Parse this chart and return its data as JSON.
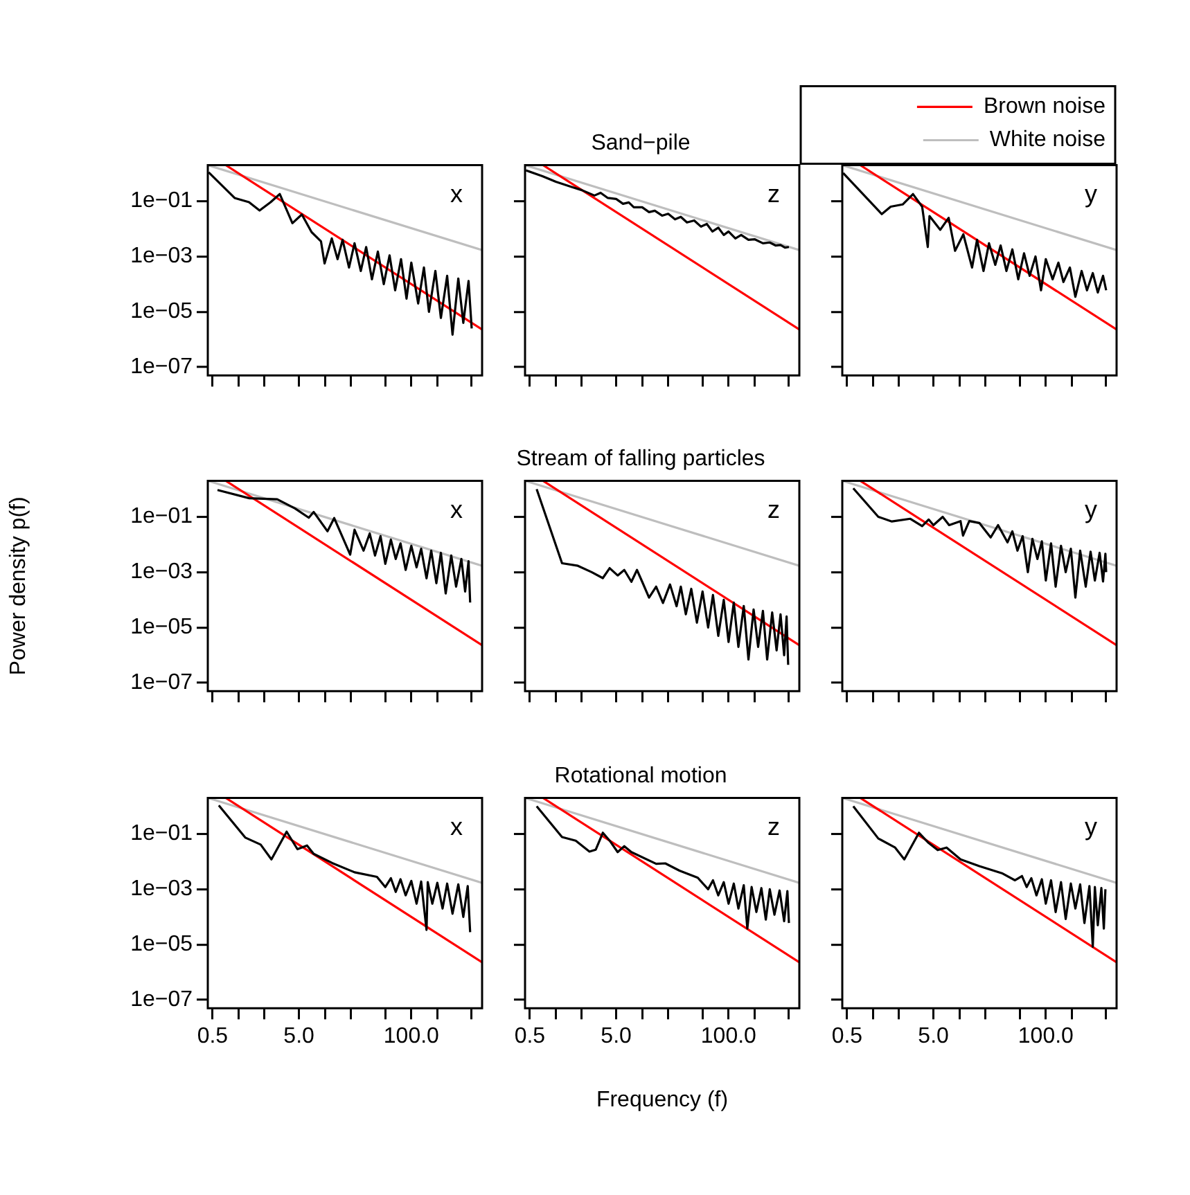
{
  "chart_data": [
    {
      "type": "line",
      "annotations": [
        "x"
      ],
      "log": "xy",
      "marker": "none",
      "tick_labels": "y",
      "xlim": [
        0.44,
        660
      ],
      "ylim": [
        5e-08,
        2
      ],
      "xticks": [
        {
          "value": 0.5,
          "label": null
        },
        {
          "value": 1,
          "label": null
        },
        {
          "value": 2,
          "label": null
        },
        {
          "value": 5,
          "label": null
        },
        {
          "value": 10,
          "label": null
        },
        {
          "value": 20,
          "label": null
        },
        {
          "value": 50,
          "label": null
        },
        {
          "value": 100,
          "label": null
        },
        {
          "value": 200,
          "label": null
        },
        {
          "value": 500,
          "label": null
        }
      ],
      "yticks": [
        {
          "value": 1e-07,
          "label": "1e−07"
        },
        {
          "value": 1e-05,
          "label": "1e−05"
        },
        {
          "value": 0.001,
          "label": "1e−03"
        },
        {
          "value": 0.1,
          "label": "1e−01"
        }
      ],
      "series": [
        {
          "color": "#000000",
          "x": [
            0.45,
            0.9,
            1.32,
            1.75,
            2.35,
            3,
            4.2,
            5.4,
            7,
            9,
            9.9,
            12,
            14,
            16,
            19,
            22,
            26,
            30,
            35,
            41,
            48,
            56,
            65,
            76,
            88,
            100,
            120,
            140,
            160,
            190,
            220,
            260,
            300,
            350,
            400,
            460,
            500
          ],
          "values": [
            1.1,
            0.13,
            0.092,
            0.046,
            0.092,
            0.18,
            0.016,
            0.033,
            0.0076,
            0.0035,
            0.00056,
            0.0045,
            0.0008,
            0.004,
            0.0004,
            0.003,
            0.0003,
            0.0022,
            0.00015,
            0.0015,
            0.0001,
            0.0011,
            6e-05,
            0.0008,
            3e-05,
            0.0006,
            2e-05,
            0.0004,
            1e-05,
            0.0003,
            6e-06,
            0.0002,
            1.5e-06,
            0.00016,
            4e-06,
            0.00013,
            2.5e-06
          ]
        },
        {
          "color": "#ff0000",
          "x": [
            0.71,
            660
          ],
          "values": [
            2,
            2.3e-06
          ]
        },
        {
          "color": "#bebebe",
          "x": [
            0.44,
            660
          ],
          "values": [
            2,
            0.0017
          ]
        }
      ]
    },
    {
      "type": "line",
      "title": "Sand−pile",
      "annotations": [
        "z"
      ],
      "log": "xy",
      "marker": "none",
      "tick_labels": false,
      "xlim": [
        0.44,
        660
      ],
      "ylim": [
        5e-08,
        2
      ],
      "xticks": [
        {
          "value": 0.5,
          "label": null
        },
        {
          "value": 1,
          "label": null
        },
        {
          "value": 2,
          "label": null
        },
        {
          "value": 5,
          "label": null
        },
        {
          "value": 10,
          "label": null
        },
        {
          "value": 20,
          "label": null
        },
        {
          "value": 50,
          "label": null
        },
        {
          "value": 100,
          "label": null
        },
        {
          "value": 200,
          "label": null
        },
        {
          "value": 500,
          "label": null
        }
      ],
      "yticks": [
        {
          "value": 1e-07,
          "label": null
        },
        {
          "value": 1e-05,
          "label": null
        },
        {
          "value": 0.001,
          "label": null
        },
        {
          "value": 0.1,
          "label": null
        }
      ],
      "series": [
        {
          "color": "#000000",
          "x": [
            0.45,
            0.7,
            1,
            1.5,
            2,
            2.8,
            3.3,
            4,
            5,
            6,
            7,
            8,
            10,
            12,
            14,
            17,
            20,
            24,
            28,
            33,
            40,
            48,
            56,
            65,
            76,
            88,
            100,
            120,
            140,
            170,
            200,
            250,
            300,
            350,
            400,
            450,
            500
          ],
          "values": [
            1.3,
            0.8,
            0.5,
            0.33,
            0.25,
            0.16,
            0.2,
            0.13,
            0.12,
            0.08,
            0.09,
            0.06,
            0.06,
            0.04,
            0.045,
            0.03,
            0.035,
            0.022,
            0.027,
            0.017,
            0.02,
            0.012,
            0.015,
            0.008,
            0.011,
            0.006,
            0.008,
            0.0045,
            0.006,
            0.004,
            0.0042,
            0.003,
            0.0032,
            0.0025,
            0.0026,
            0.0021,
            0.0022
          ]
        },
        {
          "color": "#ff0000",
          "x": [
            0.71,
            660
          ],
          "values": [
            2,
            2.3e-06
          ]
        },
        {
          "color": "#bebebe",
          "x": [
            0.44,
            660
          ],
          "values": [
            2,
            0.0017
          ]
        }
      ]
    },
    {
      "type": "line",
      "annotations": [
        "y"
      ],
      "log": "xy",
      "marker": "none",
      "tick_labels": false,
      "legend": "top right",
      "xlim": [
        0.44,
        660
      ],
      "ylim": [
        5e-08,
        2
      ],
      "xticks": [
        {
          "value": 0.5,
          "label": null
        },
        {
          "value": 1,
          "label": null
        },
        {
          "value": 2,
          "label": null
        },
        {
          "value": 5,
          "label": null
        },
        {
          "value": 10,
          "label": null
        },
        {
          "value": 20,
          "label": null
        },
        {
          "value": 50,
          "label": null
        },
        {
          "value": 100,
          "label": null
        },
        {
          "value": 200,
          "label": null
        },
        {
          "value": 500,
          "label": null
        }
      ],
      "yticks": [
        {
          "value": 1e-07,
          "label": null
        },
        {
          "value": 1e-05,
          "label": null
        },
        {
          "value": 0.001,
          "label": null
        },
        {
          "value": 0.1,
          "label": null
        }
      ],
      "series": [
        {
          "color": "#000000",
          "x": [
            0.45,
            1.26,
            1.6,
            2.2,
            2.9,
            3.7,
            4.3,
            4.5,
            6,
            7.5,
            8.9,
            11.1,
            14,
            16,
            19,
            22,
            26,
            30,
            35,
            41,
            48,
            56,
            65,
            76,
            88,
            100,
            120,
            140,
            160,
            190,
            220,
            260,
            300,
            350,
            400,
            460,
            500
          ],
          "values": [
            1.04,
            0.034,
            0.063,
            0.076,
            0.18,
            0.063,
            0.0022,
            0.029,
            0.0092,
            0.025,
            0.0016,
            0.0063,
            0.0004,
            0.004,
            0.0003,
            0.003,
            0.0005,
            0.0025,
            0.0003,
            0.0018,
            0.00015,
            0.0013,
            0.0002,
            0.001,
            6e-05,
            0.0008,
            0.00015,
            0.0006,
            0.00012,
            0.0004,
            3.5e-05,
            0.0003,
            6e-05,
            0.00025,
            5e-05,
            0.0002,
            6e-05
          ]
        },
        {
          "name": "Brown noise",
          "color": "#ff0000",
          "x": [
            0.71,
            660
          ],
          "values": [
            2,
            2.3e-06
          ]
        },
        {
          "name": "White noise",
          "color": "#bebebe",
          "x": [
            0.44,
            660
          ],
          "values": [
            2,
            0.0017
          ]
        }
      ]
    },
    {
      "type": "line",
      "ylabel": "Power density p(f)",
      "annotations": [
        "x"
      ],
      "log": "xy",
      "marker": "none",
      "tick_labels": "y",
      "xlim": [
        0.44,
        660
      ],
      "ylim": [
        5e-08,
        2
      ],
      "xticks": [
        {
          "value": 0.5,
          "label": null
        },
        {
          "value": 1,
          "label": null
        },
        {
          "value": 2,
          "label": null
        },
        {
          "value": 5,
          "label": null
        },
        {
          "value": 10,
          "label": null
        },
        {
          "value": 20,
          "label": null
        },
        {
          "value": 50,
          "label": null
        },
        {
          "value": 100,
          "label": null
        },
        {
          "value": 200,
          "label": null
        },
        {
          "value": 500,
          "label": null
        }
      ],
      "yticks": [
        {
          "value": 1e-07,
          "label": "1e−07"
        },
        {
          "value": 1e-05,
          "label": "1e−05"
        },
        {
          "value": 0.001,
          "label": "1e−03"
        },
        {
          "value": 0.1,
          "label": "1e−01"
        }
      ],
      "series": [
        {
          "color": "#000000",
          "x": [
            0.57,
            1.33,
            2.8,
            4.5,
            6.5,
            7.4,
            10.7,
            12.8,
            19.6,
            22,
            28,
            33,
            38,
            44,
            50,
            58,
            66,
            75,
            86,
            100,
            115,
            130,
            150,
            170,
            195,
            220,
            250,
            290,
            330,
            380,
            420,
            460,
            480
          ],
          "values": [
            0.93,
            0.47,
            0.43,
            0.2,
            0.093,
            0.15,
            0.03,
            0.09,
            0.0043,
            0.034,
            0.006,
            0.025,
            0.004,
            0.02,
            0.002,
            0.015,
            0.003,
            0.011,
            0.0012,
            0.009,
            0.0015,
            0.007,
            0.0006,
            0.006,
            0.0004,
            0.005,
            0.00017,
            0.004,
            0.0003,
            0.003,
            0.0002,
            0.0025,
            8e-05
          ]
        },
        {
          "color": "#ff0000",
          "x": [
            0.71,
            660
          ],
          "values": [
            2,
            2.3e-06
          ]
        },
        {
          "color": "#bebebe",
          "x": [
            0.44,
            660
          ],
          "values": [
            2,
            0.0017
          ]
        }
      ]
    },
    {
      "type": "line",
      "title": "Stream of falling particles",
      "annotations": [
        "z"
      ],
      "log": "xy",
      "marker": "none",
      "tick_labels": false,
      "xlim": [
        0.44,
        660
      ],
      "ylim": [
        5e-08,
        2
      ],
      "xticks": [
        {
          "value": 0.5,
          "label": null
        },
        {
          "value": 1,
          "label": null
        },
        {
          "value": 2,
          "label": null
        },
        {
          "value": 5,
          "label": null
        },
        {
          "value": 10,
          "label": null
        },
        {
          "value": 20,
          "label": null
        },
        {
          "value": 50,
          "label": null
        },
        {
          "value": 100,
          "label": null
        },
        {
          "value": 200,
          "label": null
        },
        {
          "value": 500,
          "label": null
        }
      ],
      "yticks": [
        {
          "value": 1e-07,
          "label": null
        },
        {
          "value": 1e-05,
          "label": null
        },
        {
          "value": 0.001,
          "label": null
        },
        {
          "value": 0.1,
          "label": null
        }
      ],
      "series": [
        {
          "color": "#000000",
          "x": [
            0.6,
            1.18,
            1.8,
            2.6,
            3.5,
            4.2,
            5.2,
            6.2,
            7.5,
            8.7,
            10,
            12,
            14.5,
            17.4,
            21,
            25,
            28,
            32,
            37,
            43,
            50,
            58,
            66,
            76,
            88,
            100,
            115,
            130,
            150,
            170,
            195,
            220,
            250,
            280,
            320,
            360,
            400,
            440,
            470,
            490
          ],
          "values": [
            1.0,
            0.0021,
            0.0017,
            0.001,
            0.00061,
            0.0014,
            0.00076,
            0.0012,
            0.00045,
            0.0012,
            0.00045,
            0.00012,
            0.0003,
            7.7e-05,
            0.00036,
            5.9e-05,
            0.0003,
            3e-05,
            0.00025,
            1.5e-05,
            0.0002,
            1e-05,
            0.00015,
            5e-06,
            0.0001,
            3e-06,
            8e-05,
            2e-06,
            6e-05,
            7e-07,
            4.5e-05,
            2e-06,
            4e-05,
            7e-07,
            3.5e-05,
            1.5e-06,
            3e-05,
            1e-06,
            2.5e-05,
            4.5e-07
          ]
        },
        {
          "color": "#ff0000",
          "x": [
            0.71,
            660
          ],
          "values": [
            2,
            2.3e-06
          ]
        },
        {
          "color": "#bebebe",
          "x": [
            0.44,
            660
          ],
          "values": [
            2,
            0.0017
          ]
        }
      ]
    },
    {
      "type": "line",
      "annotations": [
        "y"
      ],
      "log": "xy",
      "marker": "none",
      "tick_labels": false,
      "xlim": [
        0.44,
        660
      ],
      "ylim": [
        5e-08,
        2
      ],
      "xticks": [
        {
          "value": 0.5,
          "label": null
        },
        {
          "value": 1,
          "label": null
        },
        {
          "value": 2,
          "label": null
        },
        {
          "value": 5,
          "label": null
        },
        {
          "value": 10,
          "label": null
        },
        {
          "value": 20,
          "label": null
        },
        {
          "value": 50,
          "label": null
        },
        {
          "value": 100,
          "label": null
        },
        {
          "value": 200,
          "label": null
        },
        {
          "value": 500,
          "label": null
        }
      ],
      "yticks": [
        {
          "value": 1e-07,
          "label": null
        },
        {
          "value": 1e-05,
          "label": null
        },
        {
          "value": 0.001,
          "label": null
        },
        {
          "value": 0.1,
          "label": null
        }
      ],
      "series": [
        {
          "color": "#000000",
          "x": [
            0.59,
            1.15,
            1.65,
            2.7,
            3.7,
            4.4,
            5,
            6.4,
            7.6,
            10.3,
            11,
            13,
            17,
            23,
            28,
            36,
            41,
            47,
            54,
            62,
            70,
            80,
            90,
            100,
            115,
            130,
            150,
            170,
            195,
            220,
            250,
            290,
            330,
            370,
            420,
            460,
            490,
            500
          ],
          "values": [
            1.07,
            0.1,
            0.068,
            0.085,
            0.046,
            0.08,
            0.05,
            0.1,
            0.05,
            0.07,
            0.021,
            0.07,
            0.06,
            0.018,
            0.05,
            0.012,
            0.03,
            0.006,
            0.02,
            0.001,
            0.016,
            0.003,
            0.013,
            0.0005,
            0.011,
            0.0003,
            0.009,
            0.001,
            0.007,
            0.00012,
            0.006,
            0.0003,
            0.0055,
            0.0005,
            0.005,
            0.00046,
            0.0046,
            0.001
          ]
        },
        {
          "color": "#ff0000",
          "x": [
            0.71,
            660
          ],
          "values": [
            2,
            2.3e-06
          ]
        },
        {
          "color": "#bebebe",
          "x": [
            0.44,
            660
          ],
          "values": [
            2,
            0.0017
          ]
        }
      ]
    },
    {
      "type": "line",
      "annotations": [
        "x"
      ],
      "log": "xy",
      "marker": "none",
      "xlim": [
        0.44,
        660
      ],
      "ylim": [
        5e-08,
        2
      ],
      "xticks": [
        {
          "value": 0.5,
          "label": "0.5"
        },
        {
          "value": 1,
          "label": null
        },
        {
          "value": 2,
          "label": null
        },
        {
          "value": 5,
          "label": "5.0"
        },
        {
          "value": 10,
          "label": null
        },
        {
          "value": 20,
          "label": null
        },
        {
          "value": 50,
          "label": null
        },
        {
          "value": 100,
          "label": "100.0"
        },
        {
          "value": 200,
          "label": null
        },
        {
          "value": 500,
          "label": null
        }
      ],
      "yticks": [
        {
          "value": 1e-07,
          "label": "1e−07"
        },
        {
          "value": 1e-05,
          "label": "1e−05"
        },
        {
          "value": 0.001,
          "label": "1e−03"
        },
        {
          "value": 0.1,
          "label": "1e−01"
        }
      ],
      "series": [
        {
          "color": "#000000",
          "x": [
            0.59,
            1.2,
            1.8,
            2.4,
            3.6,
            4.8,
            6.2,
            7.4,
            12.1,
            22,
            40,
            50,
            58,
            66,
            75,
            86,
            100,
            115,
            130,
            150,
            155,
            175,
            200,
            230,
            260,
            300,
            350,
            400,
            450,
            480
          ],
          "values": [
            1.07,
            0.073,
            0.041,
            0.012,
            0.12,
            0.028,
            0.038,
            0.019,
            0.0089,
            0.0041,
            0.0028,
            0.0012,
            0.0025,
            0.0008,
            0.0023,
            0.0006,
            0.002,
            0.0003,
            0.0019,
            3.4e-05,
            0.0018,
            0.0003,
            0.0017,
            0.0002,
            0.0016,
            0.00013,
            0.0015,
            0.0001,
            0.0013,
            2.8e-05
          ]
        },
        {
          "color": "#ff0000",
          "x": [
            0.71,
            660
          ],
          "values": [
            2,
            2.3e-06
          ]
        },
        {
          "color": "#bebebe",
          "x": [
            0.44,
            660
          ],
          "values": [
            2,
            0.0017
          ]
        }
      ]
    },
    {
      "type": "line",
      "title": "Rotational motion",
      "xlabel": "Frequency (f)",
      "annotations": [
        "z"
      ],
      "log": "xy",
      "marker": "none",
      "tick_labels": "x",
      "xlim": [
        0.44,
        660
      ],
      "ylim": [
        5e-08,
        2
      ],
      "xticks": [
        {
          "value": 0.5,
          "label": "0.5"
        },
        {
          "value": 1,
          "label": null
        },
        {
          "value": 2,
          "label": null
        },
        {
          "value": 5,
          "label": "5.0"
        },
        {
          "value": 10,
          "label": null
        },
        {
          "value": 20,
          "label": null
        },
        {
          "value": 50,
          "label": null
        },
        {
          "value": 100,
          "label": "100.0"
        },
        {
          "value": 200,
          "label": null
        },
        {
          "value": 500,
          "label": null
        }
      ],
      "yticks": [
        {
          "value": 1e-07,
          "label": null
        },
        {
          "value": 1e-05,
          "label": null
        },
        {
          "value": 0.001,
          "label": null
        },
        {
          "value": 0.1,
          "label": null
        }
      ],
      "series": [
        {
          "color": "#000000",
          "x": [
            0.6,
            1.18,
            1.7,
            2.45,
            2.9,
            3.5,
            4.2,
            5.2,
            6.2,
            7.5,
            14.5,
            18.5,
            27,
            44,
            58,
            66,
            76,
            88,
            100,
            115,
            130,
            150,
            165,
            185,
            210,
            240,
            270,
            300,
            340,
            390,
            440,
            480,
            500
          ],
          "values": [
            1.0,
            0.077,
            0.057,
            0.023,
            0.027,
            0.11,
            0.057,
            0.022,
            0.036,
            0.022,
            0.0083,
            0.0086,
            0.0047,
            0.0026,
            0.001,
            0.0021,
            0.0006,
            0.0018,
            0.0003,
            0.0016,
            0.0002,
            0.0014,
            3.8e-05,
            0.0012,
            0.00015,
            0.0011,
            8e-05,
            0.001,
            0.00012,
            0.0009,
            7e-05,
            0.00085,
            6e-05
          ]
        },
        {
          "color": "#ff0000",
          "x": [
            0.71,
            660
          ],
          "values": [
            2,
            2.3e-06
          ]
        },
        {
          "color": "#bebebe",
          "x": [
            0.44,
            660
          ],
          "values": [
            2,
            0.0017
          ]
        }
      ]
    },
    {
      "type": "line",
      "annotations": [
        "y"
      ],
      "log": "xy",
      "marker": "none",
      "tick_labels": "x",
      "xlim": [
        0.44,
        660
      ],
      "ylim": [
        5e-08,
        2
      ],
      "xticks": [
        {
          "value": 0.5,
          "label": "0.5"
        },
        {
          "value": 1,
          "label": null
        },
        {
          "value": 2,
          "label": null
        },
        {
          "value": 5,
          "label": "5.0"
        },
        {
          "value": 10,
          "label": null
        },
        {
          "value": 20,
          "label": null
        },
        {
          "value": 50,
          "label": null
        },
        {
          "value": 100,
          "label": "100.0"
        },
        {
          "value": 200,
          "label": null
        },
        {
          "value": 500,
          "label": null
        }
      ],
      "yticks": [
        {
          "value": 1e-07,
          "label": null
        },
        {
          "value": 1e-05,
          "label": null
        },
        {
          "value": 0.001,
          "label": null
        },
        {
          "value": 0.1,
          "label": null
        }
      ],
      "series": [
        {
          "color": "#000000",
          "x": [
            0.59,
            1.15,
            1.8,
            2.3,
            3.4,
            4.4,
            5.6,
            7.1,
            10.3,
            17,
            31,
            44,
            53,
            60,
            68,
            78,
            90,
            100,
            115,
            130,
            150,
            170,
            195,
            220,
            250,
            280,
            320,
            350,
            370,
            400,
            440,
            470,
            490
          ],
          "values": [
            1.0,
            0.068,
            0.032,
            0.012,
            0.11,
            0.047,
            0.026,
            0.032,
            0.012,
            0.0068,
            0.0038,
            0.0021,
            0.003,
            0.0012,
            0.0025,
            0.0006,
            0.0023,
            0.0003,
            0.0021,
            0.00015,
            0.0018,
            8.4e-05,
            0.0016,
            0.0002,
            0.0015,
            6e-05,
            0.0013,
            8.4e-06,
            0.0012,
            5e-05,
            0.0011,
            3.8e-05,
            0.001
          ]
        },
        {
          "color": "#ff0000",
          "x": [
            0.71,
            660
          ],
          "values": [
            2,
            2.3e-06
          ]
        },
        {
          "color": "#bebebe",
          "x": [
            0.44,
            660
          ],
          "values": [
            2,
            0.0017
          ]
        }
      ]
    }
  ]
}
